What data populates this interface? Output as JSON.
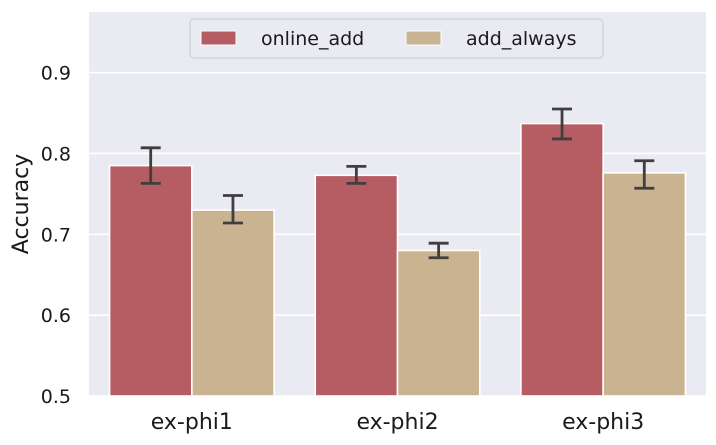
{
  "chart_data": {
    "type": "bar",
    "categories": [
      "ex-phi1",
      "ex-phi2",
      "ex-phi3"
    ],
    "series": [
      {
        "name": "online_add",
        "color": "#b55d63",
        "values": [
          0.785,
          0.773,
          0.837
        ],
        "error_low": [
          0.763,
          0.763,
          0.818
        ],
        "error_high": [
          0.807,
          0.784,
          0.855
        ]
      },
      {
        "name": "add_always",
        "color": "#c9b391",
        "values": [
          0.73,
          0.68,
          0.776
        ],
        "error_low": [
          0.714,
          0.671,
          0.757
        ],
        "error_high": [
          0.748,
          0.689,
          0.791
        ]
      }
    ],
    "ylabel": "Accuracy",
    "xlabel": "",
    "ylim": [
      0.5,
      0.975
    ],
    "yticks": [
      "0.5",
      "0.6",
      "0.7",
      "0.8",
      "0.9"
    ],
    "grid": true,
    "legend_position": "top-center",
    "plot_background": "#eaeaf2",
    "gridline_color": "#ffffff",
    "error_bar_color": "#3f3f3f"
  }
}
